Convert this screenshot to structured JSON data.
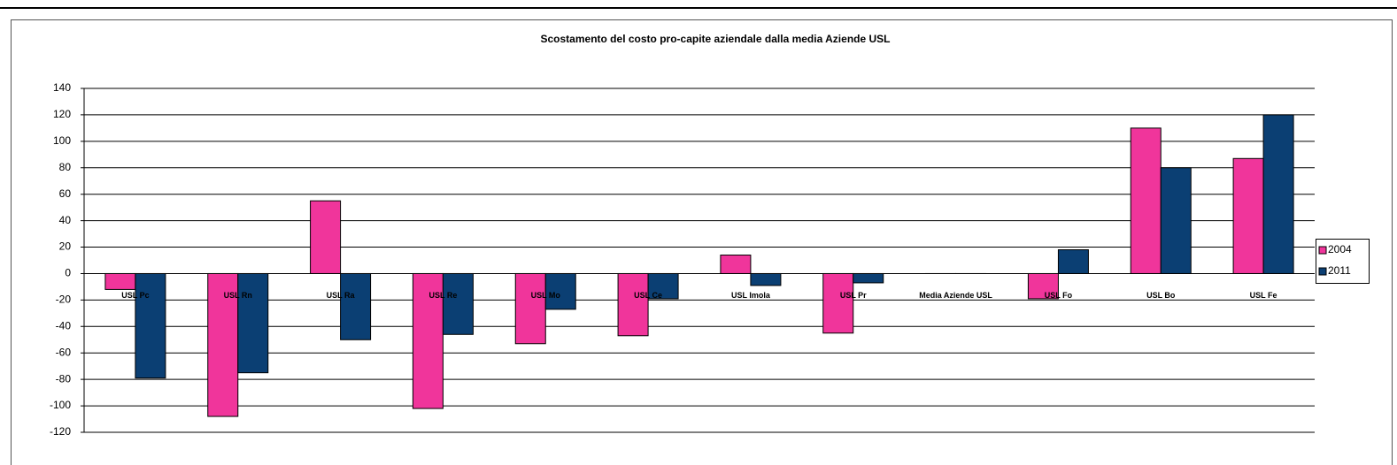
{
  "chart_data": {
    "type": "bar",
    "title": "Scostamento del costo pro-capite aziendale dalla media Aziende USL",
    "categories": [
      "USL Pc",
      "USL Rn",
      "USL Ra",
      "USL Re",
      "USL Mo",
      "USL Ce",
      "USL Imola",
      "USL Pr",
      "Media Aziende USL",
      "USL Fo",
      "USL Bo",
      "USL Fe"
    ],
    "series": [
      {
        "name": "2004",
        "color": "#f0359b",
        "values": [
          -12,
          -108,
          55,
          -102,
          -53,
          -47,
          14,
          -45,
          0,
          -19,
          110,
          87
        ]
      },
      {
        "name": "2011",
        "color": "#0b3f73",
        "values": [
          -79,
          -75,
          -50,
          -46,
          -27,
          -19,
          -9,
          -7,
          0,
          18,
          80,
          120
        ]
      }
    ],
    "ylim": [
      -120,
      140
    ],
    "yticks": [
      140,
      120,
      100,
      80,
      60,
      40,
      20,
      0,
      -20,
      -40,
      -60,
      -80,
      -100,
      -120
    ],
    "grid": true,
    "legend": "right"
  }
}
